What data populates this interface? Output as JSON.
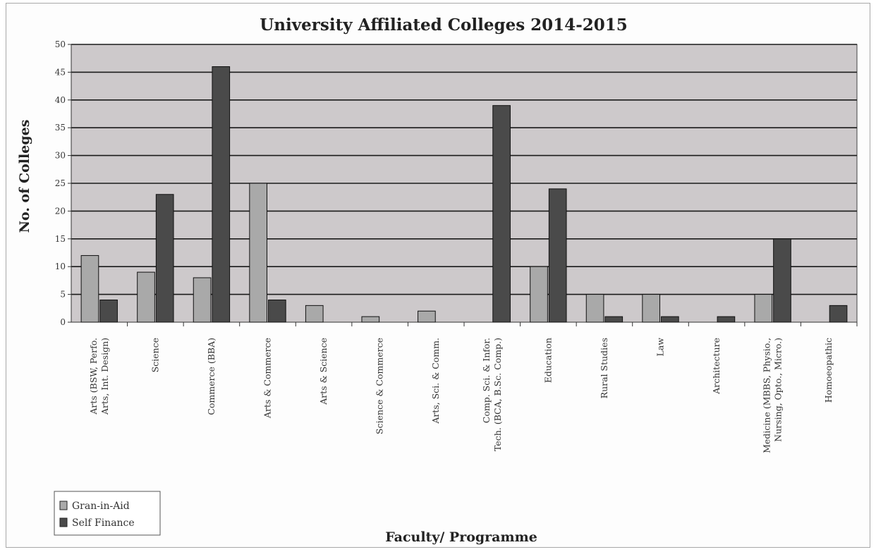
{
  "chart_data": {
    "type": "bar",
    "title": "University Affiliated Colleges 2014-2015",
    "xlabel": "Faculty/ Programme",
    "ylabel": "No. of Colleges",
    "ylim": [
      0,
      50
    ],
    "yticks": [
      0,
      5,
      10,
      15,
      20,
      25,
      30,
      35,
      40,
      45,
      50
    ],
    "grid": true,
    "legend_position": "bottom-left",
    "categories": [
      [
        "Arts (BSW, Perfo.",
        "Arts, Int. Design)"
      ],
      [
        "Science"
      ],
      [
        "Commerce (BBA)"
      ],
      [
        "Arts & Commerce"
      ],
      [
        "Arts & Science"
      ],
      [
        "Science & Commerce"
      ],
      [
        "Arts, Sci. & Comm."
      ],
      [
        "Comp. Sci. & Infor.",
        "Tech. (BCA, B.Sc. Comp.)"
      ],
      [
        "Education"
      ],
      [
        "Rural Studies"
      ],
      [
        "Law"
      ],
      [
        "Architecture"
      ],
      [
        "Medicine (MBBS, Physio.,",
        "Nursing, Opto., Micro.)"
      ],
      [
        "Homoeopathic"
      ]
    ],
    "series": [
      {
        "name": "Gran-in-Aid",
        "color": "#a9a9a9",
        "values": [
          12,
          9,
          8,
          25,
          3,
          1,
          2,
          0,
          10,
          5,
          5,
          0,
          5,
          0
        ]
      },
      {
        "name": "Self Finance",
        "color": "#4a4a4a",
        "values": [
          4,
          23,
          46,
          4,
          0,
          0,
          0,
          39,
          24,
          1,
          1,
          1,
          15,
          3
        ]
      }
    ],
    "plot_background": "#cdc9cb"
  }
}
